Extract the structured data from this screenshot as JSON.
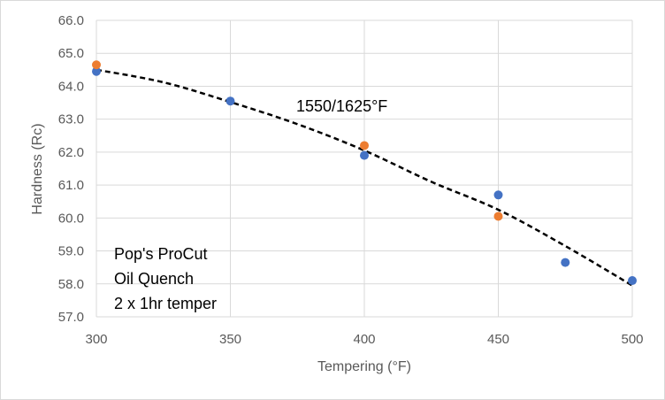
{
  "chart_data": {
    "type": "scatter",
    "xlabel": "Tempering (°F)",
    "ylabel": "Hardness (Rc)",
    "xlim": [
      300,
      500
    ],
    "ylim": [
      57.0,
      66.0
    ],
    "x_ticks": [
      "300",
      "350",
      "400",
      "450",
      "500"
    ],
    "y_ticks": [
      "57.0",
      "58.0",
      "59.0",
      "60.0",
      "61.0",
      "62.0",
      "63.0",
      "64.0",
      "65.0",
      "66.0"
    ],
    "grid": true,
    "series": [
      {
        "color": "#4472c4",
        "points": [
          {
            "x": 300,
            "y": 64.45
          },
          {
            "x": 350,
            "y": 63.55
          },
          {
            "x": 400,
            "y": 61.9
          },
          {
            "x": 450,
            "y": 60.7
          },
          {
            "x": 475,
            "y": 58.65
          },
          {
            "x": 500,
            "y": 58.1
          }
        ]
      },
      {
        "color": "#ed7d31",
        "points": [
          {
            "x": 300,
            "y": 64.65
          },
          {
            "x": 400,
            "y": 62.2
          },
          {
            "x": 450,
            "y": 60.05
          }
        ]
      }
    ],
    "trendline": {
      "style": "dashed",
      "color": "#000000",
      "type": "polynomial",
      "points": [
        {
          "x": 300,
          "y": 64.5
        },
        {
          "x": 325,
          "y": 64.12
        },
        {
          "x": 350,
          "y": 63.52
        },
        {
          "x": 375,
          "y": 62.85
        },
        {
          "x": 400,
          "y": 62.05
        },
        {
          "x": 425,
          "y": 61.1
        },
        {
          "x": 450,
          "y": 60.25
        },
        {
          "x": 475,
          "y": 59.15
        },
        {
          "x": 500,
          "y": 57.95
        }
      ]
    },
    "annotations": {
      "temp_label": "1550/1625°F",
      "notes": [
        "Pop's ProCut",
        "Oil Quench",
        "2 x 1hr temper"
      ]
    }
  }
}
